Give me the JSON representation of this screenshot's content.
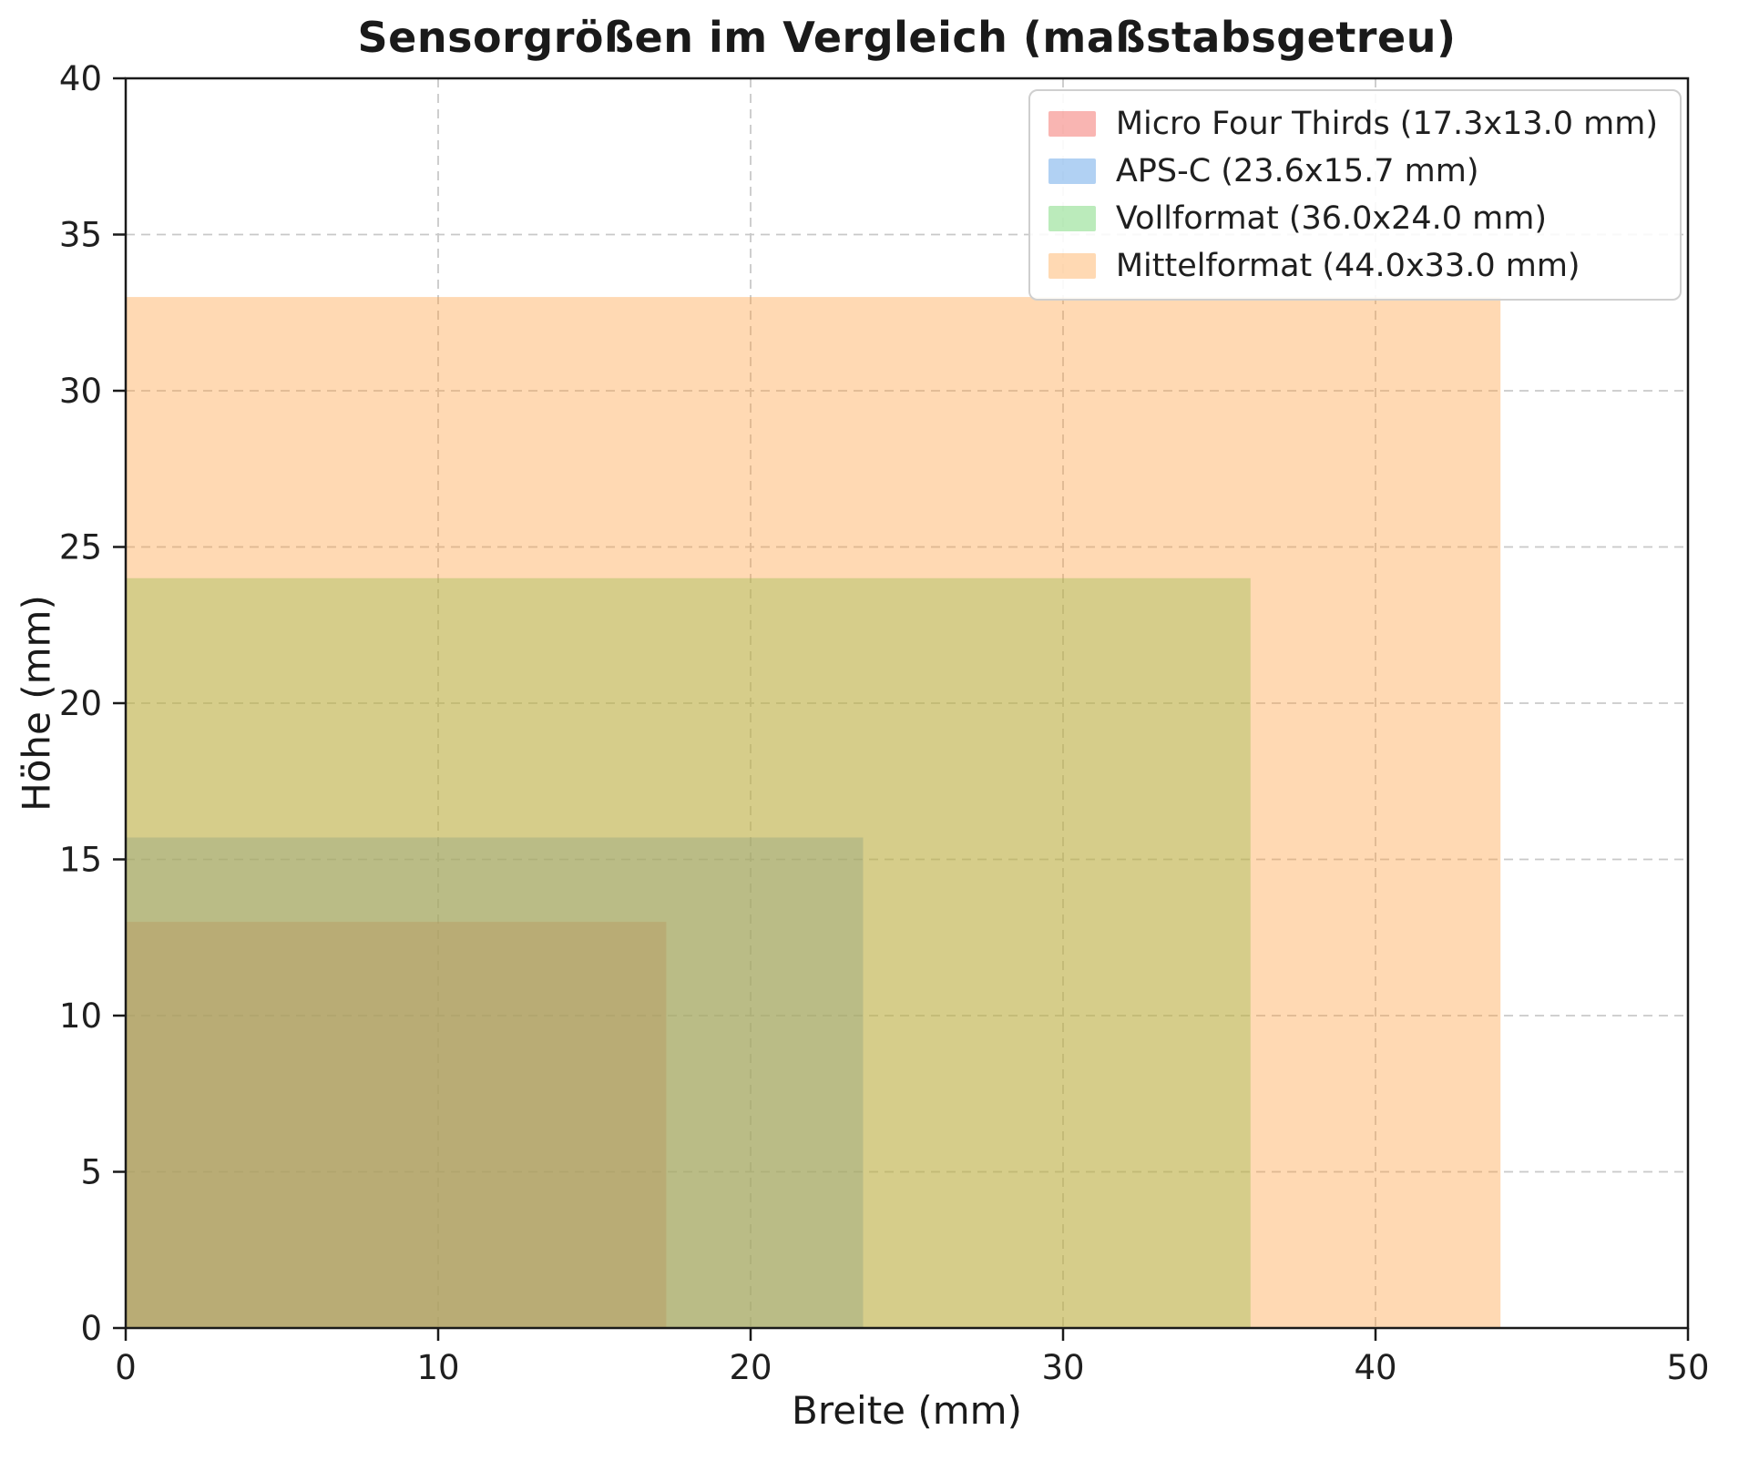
{
  "chart_data": {
    "type": "area",
    "title": "Sensorgrößen im Vergleich (maßstabsgetreu)",
    "xlabel": "Breite (mm)",
    "ylabel": "Höhe (mm)",
    "xlim": [
      0,
      50
    ],
    "ylim": [
      0,
      40
    ],
    "xticks": [
      0,
      10,
      20,
      30,
      40,
      50
    ],
    "yticks": [
      0,
      5,
      10,
      15,
      20,
      25,
      30,
      35,
      40
    ],
    "grid": true,
    "grid_style": "dashed",
    "legend_position": "upper right",
    "series": [
      {
        "name": "Micro Four Thirds (17.3x13.0 mm)",
        "width_mm": 17.3,
        "height_mm": 13.0,
        "color": "#f0453e",
        "fill_opacity": 0.4
      },
      {
        "name": "APS-C (23.6x15.7 mm)",
        "width_mm": 23.6,
        "height_mm": 15.7,
        "color": "#3c8ce0",
        "fill_opacity": 0.4
      },
      {
        "name": "Vollformat (36.0x24.0 mm)",
        "width_mm": 36.0,
        "height_mm": 24.0,
        "color": "#55cc55",
        "fill_opacity": 0.4
      },
      {
        "name": "Mittelformat (44.0x33.0 mm)",
        "width_mm": 44.0,
        "height_mm": 33.0,
        "color": "#ffa042",
        "fill_opacity": 0.4
      }
    ]
  }
}
